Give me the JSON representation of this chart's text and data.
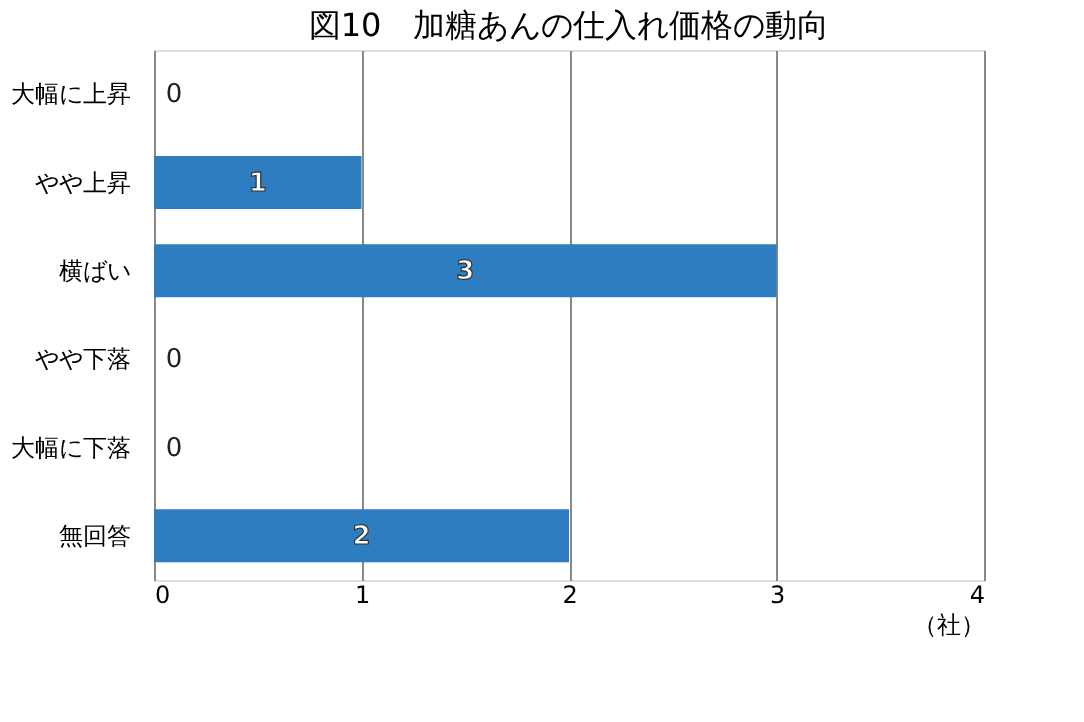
{
  "chart_data": {
    "type": "bar",
    "orientation": "horizontal",
    "title": "図10　加糖あんの仕入れ価格の動向",
    "xlabel": "（社）",
    "categories": [
      "大幅に上昇",
      "やや上昇",
      "横ばい",
      "やや下落",
      "大幅に下落",
      "無回答"
    ],
    "values": [
      0,
      1,
      3,
      0,
      0,
      2
    ],
    "color": "#2e7dc0",
    "xlim": [
      0,
      4
    ],
    "xticks": [
      0,
      1,
      2,
      3,
      4
    ],
    "grid": "x",
    "data_labels": true
  }
}
